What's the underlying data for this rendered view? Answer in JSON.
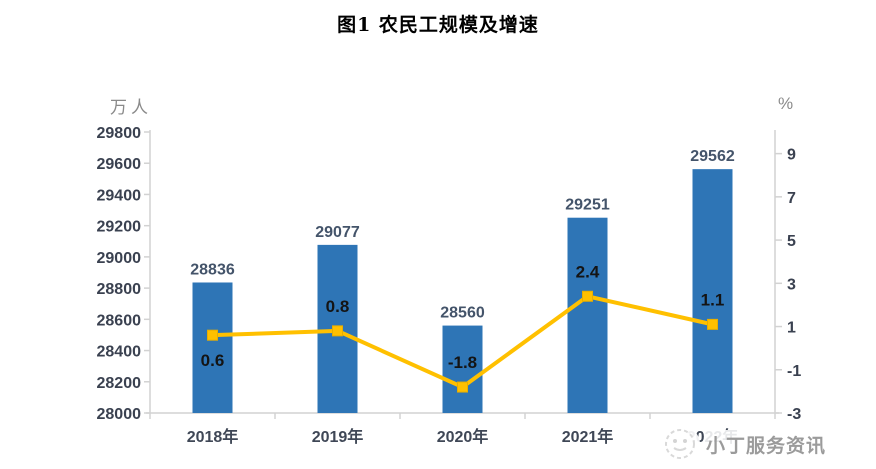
{
  "watermark": {
    "text": "小丁服务资讯"
  },
  "chart_data": {
    "type": "bar",
    "title": "图1  农民工规模及增速",
    "categories": [
      "2018年",
      "2019年",
      "2020年",
      "2021年",
      "2022年"
    ],
    "series": [
      {
        "name": "农民工规模",
        "type": "bar",
        "axis": "left",
        "unit": "万人",
        "color": "#2E75B6",
        "values": [
          28836,
          29077,
          28560,
          29251,
          29562
        ],
        "label_color": "#44546A"
      },
      {
        "name": "增速",
        "type": "line",
        "axis": "right",
        "unit": "%",
        "color": "#FFC000",
        "marker_stroke": "#E8AE00",
        "values": [
          0.6,
          0.8,
          -1.8,
          2.4,
          1.1
        ],
        "label_positions": [
          "below",
          "above",
          "above",
          "above",
          "above"
        ],
        "label_color": "#141414"
      }
    ],
    "left_axis": {
      "title": "万人",
      "min": 28000,
      "max": 29800,
      "ticks": [
        29800,
        29600,
        29400,
        29200,
        29000,
        28800,
        28600,
        28400,
        28200,
        28000
      ]
    },
    "right_axis": {
      "title": "%",
      "min": -3,
      "max": 10,
      "ticks": [
        9,
        7,
        5,
        3,
        1,
        -1,
        -3
      ]
    },
    "grid": false,
    "legend": "none",
    "axis_line_color": "#D2D2D2",
    "tick_label_color": "#3A4150",
    "x_label_color": "#3F4756",
    "unit_label_color": "#8A8A8A"
  }
}
